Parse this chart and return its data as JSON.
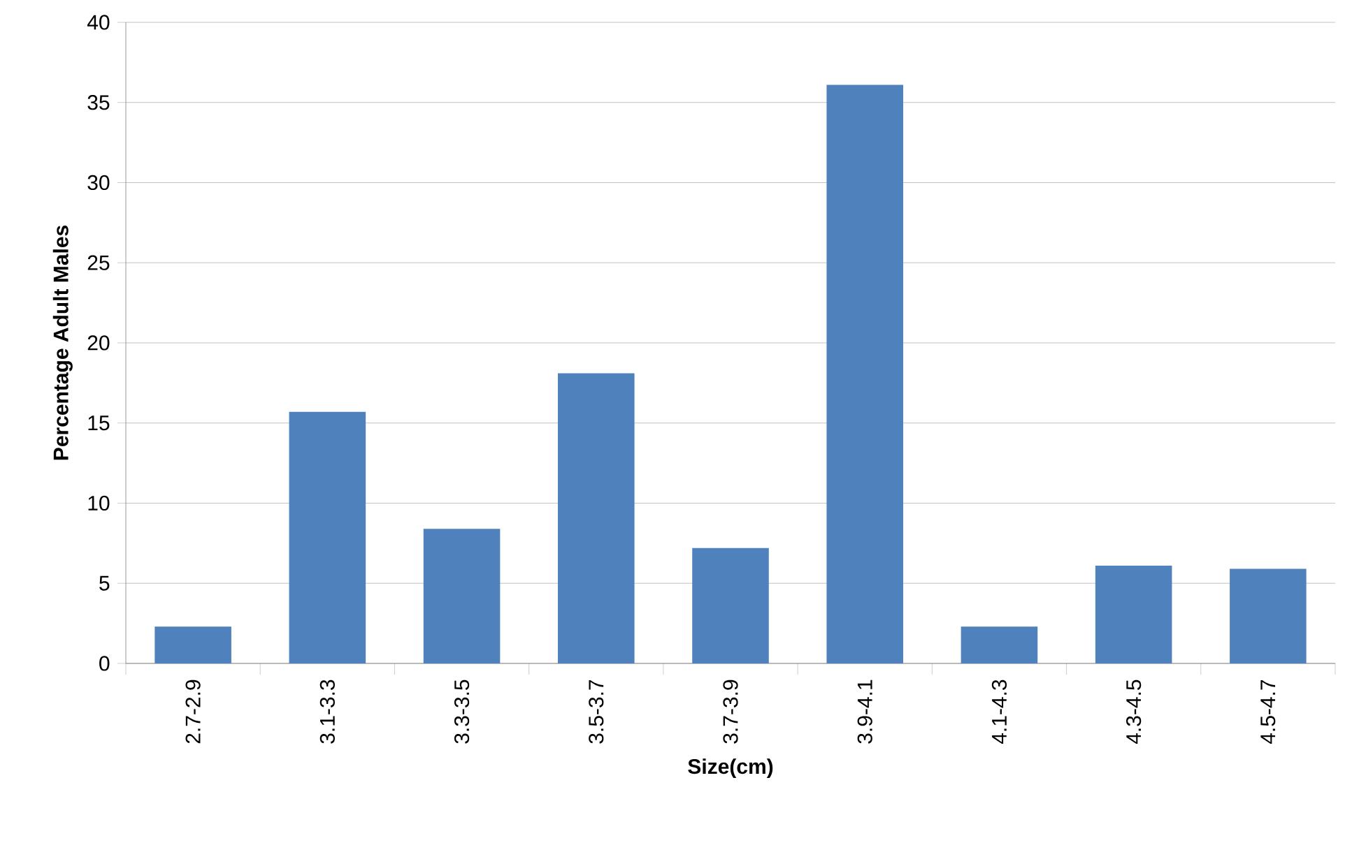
{
  "chart_data": {
    "type": "bar",
    "xlabel": "Size(cm)",
    "ylabel": "Percentage Adult  Males",
    "categories": [
      "2.7-2.9",
      "3.1-3.3",
      "3.3-3.5",
      "3.5-3.7",
      "3.7-3.9",
      "3.9-4.1",
      "4.1-4.3",
      "4.3-4.5",
      "4.5-4.7"
    ],
    "values": [
      2.3,
      15.7,
      8.4,
      18.1,
      7.2,
      36.1,
      2.3,
      6.1,
      5.9
    ],
    "color": "#4f81bd",
    "ylim": [
      0,
      40
    ],
    "yticks": [
      0,
      5,
      10,
      15,
      20,
      25,
      30,
      35,
      40
    ],
    "grid": "y"
  }
}
